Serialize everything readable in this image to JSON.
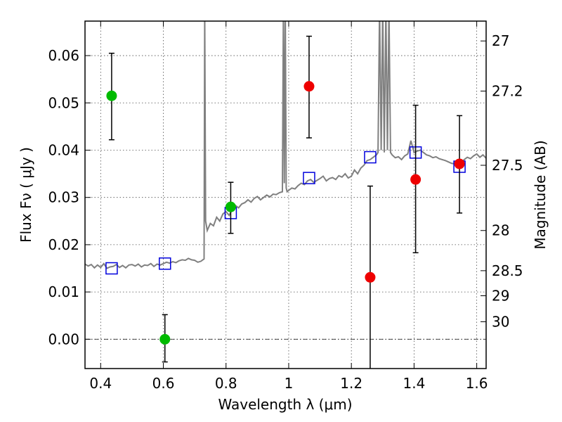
{
  "chart_data": {
    "type": "scatter",
    "xlabel": "Wavelength  λ (μm)",
    "ylabel": "Flux  Fν  ( μJy )",
    "y2label": "Magnitude (AB)",
    "xlim": [
      0.35,
      1.63
    ],
    "ylim": [
      -0.0062,
      0.0673
    ],
    "grid": true,
    "x_ticks": [
      {
        "v": 0.4,
        "label": "0.4"
      },
      {
        "v": 0.6,
        "label": "0.6"
      },
      {
        "v": 0.8,
        "label": "0.8"
      },
      {
        "v": 1.0,
        "label": "1"
      },
      {
        "v": 1.2,
        "label": "1.2"
      },
      {
        "v": 1.4,
        "label": "1.4"
      },
      {
        "v": 1.6,
        "label": "1.6"
      }
    ],
    "y_ticks": [
      {
        "v": 0.0,
        "label": "0.00"
      },
      {
        "v": 0.01,
        "label": "0.01"
      },
      {
        "v": 0.02,
        "label": "0.02"
      },
      {
        "v": 0.03,
        "label": "0.03"
      },
      {
        "v": 0.04,
        "label": "0.04"
      },
      {
        "v": 0.05,
        "label": "0.05"
      },
      {
        "v": 0.06,
        "label": "0.06"
      }
    ],
    "y2_ticks": [
      {
        "flux": 0.0631,
        "label": "27"
      },
      {
        "flux": 0.0525,
        "label": "27.2"
      },
      {
        "flux": 0.0368,
        "label": "27.5"
      },
      {
        "flux": 0.023,
        "label": "28"
      },
      {
        "flux": 0.0145,
        "label": "28.5"
      },
      {
        "flux": 0.0092,
        "label": "29"
      },
      {
        "flux": 0.0037,
        "label": "30"
      }
    ],
    "zero_line": 0.0,
    "colors": {
      "spectrum": "#808080",
      "green": "#00bb00",
      "red": "#ee0000",
      "model": "#0000dd",
      "errorbar": "#000000"
    },
    "spectrum": {
      "x": [
        0.35,
        0.36,
        0.37,
        0.38,
        0.39,
        0.4,
        0.41,
        0.42,
        0.43,
        0.44,
        0.45,
        0.46,
        0.47,
        0.48,
        0.49,
        0.5,
        0.51,
        0.52,
        0.53,
        0.54,
        0.55,
        0.56,
        0.57,
        0.58,
        0.59,
        0.6,
        0.61,
        0.62,
        0.63,
        0.64,
        0.65,
        0.66,
        0.67,
        0.68,
        0.69,
        0.7,
        0.71,
        0.72,
        0.73,
        0.732,
        0.735,
        0.74,
        0.75,
        0.76,
        0.77,
        0.78,
        0.79,
        0.8,
        0.81,
        0.82,
        0.83,
        0.84,
        0.85,
        0.86,
        0.87,
        0.88,
        0.89,
        0.9,
        0.91,
        0.92,
        0.93,
        0.94,
        0.95,
        0.96,
        0.97,
        0.98,
        0.983,
        0.986,
        0.989,
        0.992,
        0.995,
        1.0,
        1.01,
        1.02,
        1.03,
        1.04,
        1.05,
        1.06,
        1.07,
        1.08,
        1.09,
        1.1,
        1.11,
        1.12,
        1.13,
        1.14,
        1.15,
        1.16,
        1.17,
        1.18,
        1.19,
        1.2,
        1.21,
        1.22,
        1.23,
        1.24,
        1.25,
        1.26,
        1.27,
        1.28,
        1.285,
        1.29,
        1.295,
        1.3,
        1.305,
        1.31,
        1.315,
        1.32,
        1.325,
        1.33,
        1.34,
        1.35,
        1.36,
        1.37,
        1.38,
        1.39,
        1.4,
        1.41,
        1.42,
        1.43,
        1.44,
        1.45,
        1.46,
        1.47,
        1.48,
        1.49,
        1.5,
        1.51,
        1.52,
        1.53,
        1.54,
        1.55,
        1.56,
        1.57,
        1.58,
        1.59,
        1.6,
        1.61,
        1.62,
        1.63
      ],
      "y": [
        0.0159,
        0.0155,
        0.0158,
        0.0151,
        0.0157,
        0.0152,
        0.016,
        0.015,
        0.0153,
        0.0154,
        0.0158,
        0.0152,
        0.0156,
        0.0151,
        0.0157,
        0.0158,
        0.0155,
        0.0159,
        0.0153,
        0.0157,
        0.0156,
        0.016,
        0.0154,
        0.0159,
        0.0157,
        0.016,
        0.0163,
        0.0161,
        0.0164,
        0.0162,
        0.0166,
        0.0168,
        0.0167,
        0.0171,
        0.0168,
        0.0167,
        0.0163,
        0.0165,
        0.017,
        0.07,
        0.025,
        0.023,
        0.0245,
        0.024,
        0.0258,
        0.025,
        0.0265,
        0.027,
        0.0262,
        0.0275,
        0.0283,
        0.0278,
        0.0286,
        0.0289,
        0.0295,
        0.029,
        0.0298,
        0.0302,
        0.0295,
        0.03,
        0.0305,
        0.0301,
        0.0307,
        0.0306,
        0.031,
        0.0312,
        0.07,
        0.033,
        0.07,
        0.032,
        0.0312,
        0.0315,
        0.032,
        0.0318,
        0.0325,
        0.033,
        0.0327,
        0.0335,
        0.0338,
        0.0332,
        0.0336,
        0.034,
        0.0345,
        0.0335,
        0.034,
        0.0342,
        0.0338,
        0.0346,
        0.0343,
        0.035,
        0.0341,
        0.0345,
        0.0358,
        0.035,
        0.0362,
        0.0368,
        0.0378,
        0.038,
        0.0385,
        0.039,
        0.0395,
        0.07,
        0.04,
        0.07,
        0.0395,
        0.07,
        0.04,
        0.07,
        0.0395,
        0.039,
        0.0384,
        0.0386,
        0.038,
        0.0388,
        0.0392,
        0.042,
        0.0395,
        0.0398,
        0.04,
        0.0395,
        0.039,
        0.0388,
        0.0384,
        0.0386,
        0.0382,
        0.038,
        0.0378,
        0.0375,
        0.0372,
        0.0371,
        0.0368,
        0.0373,
        0.038,
        0.0385,
        0.0382,
        0.0388,
        0.0392,
        0.0385,
        0.039,
        0.0383
      ]
    },
    "series": [
      {
        "points": [
          {
            "x": 0.435,
            "y": 0.0515,
            "err_hi": 0.0605,
            "err_lo": 0.0422
          },
          {
            "x": 0.605,
            "y": 0.0,
            "err_hi": 0.0052,
            "err_lo": -0.0048
          },
          {
            "x": 0.815,
            "y": 0.028,
            "err_hi": 0.0332,
            "err_lo": 0.0224
          }
        ]
      },
      {
        "points": [
          {
            "x": 1.065,
            "y": 0.0535,
            "err_hi": 0.0641,
            "err_lo": 0.0426
          },
          {
            "x": 1.26,
            "y": 0.0131,
            "err_hi": 0.0324,
            "err_lo": -0.01
          },
          {
            "x": 1.405,
            "y": 0.0338,
            "err_hi": 0.0495,
            "err_lo": 0.0183
          },
          {
            "x": 1.545,
            "y": 0.0371,
            "err_hi": 0.0473,
            "err_lo": 0.0267
          }
        ]
      },
      {
        "points": [
          {
            "x": 0.435,
            "y": 0.015
          },
          {
            "x": 0.605,
            "y": 0.016
          },
          {
            "x": 0.815,
            "y": 0.0267
          },
          {
            "x": 1.065,
            "y": 0.0341
          },
          {
            "x": 1.26,
            "y": 0.0385
          },
          {
            "x": 1.405,
            "y": 0.0395
          },
          {
            "x": 1.545,
            "y": 0.0365
          }
        ]
      }
    ]
  }
}
